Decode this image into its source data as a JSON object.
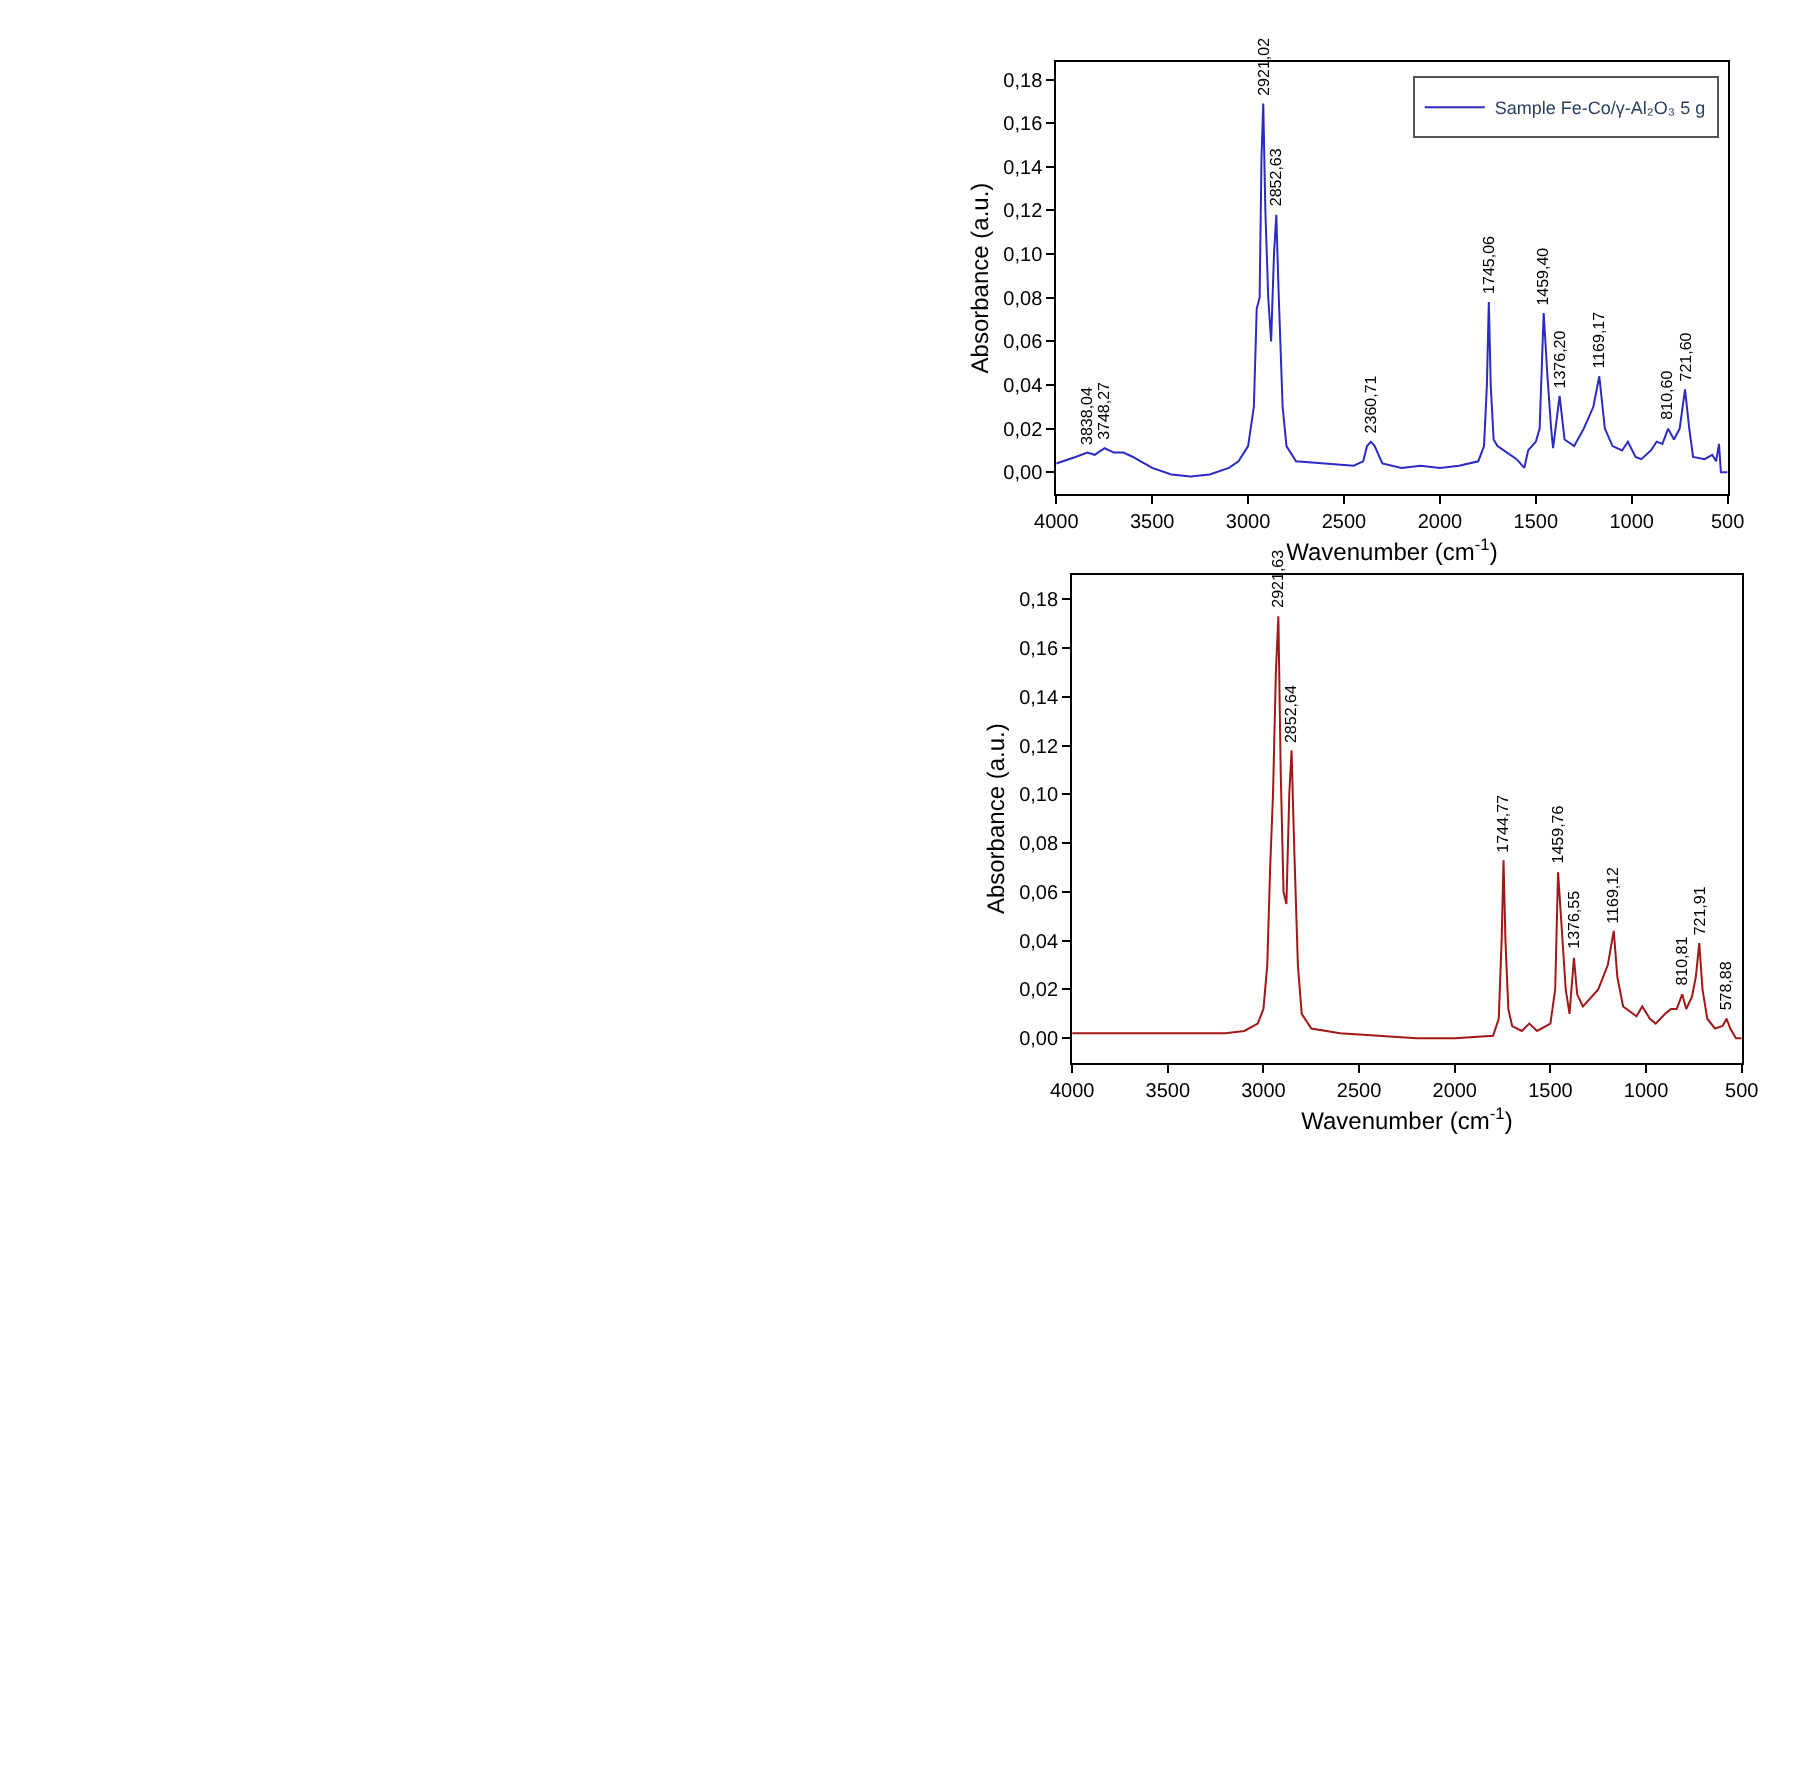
{
  "chart_data": [
    {
      "type": "line",
      "xlabel": "Wavenumber (cm$^{-1}$)",
      "ylabel": "Absorbance (a.u.)",
      "xlim": [
        4000,
        500
      ],
      "xticks": [
        4000,
        3500,
        3000,
        2500,
        2000,
        1500,
        1000,
        500
      ],
      "ylim": [
        -0.01,
        0.188
      ],
      "yticks": [
        {
          "value": 0,
          "label": "0,00"
        },
        {
          "value": 0.02,
          "label": "0,02"
        },
        {
          "value": 0.04,
          "label": "0,04"
        },
        {
          "value": 0.06,
          "label": "0,06"
        },
        {
          "value": 0.08,
          "label": "0,08"
        },
        {
          "value": 0.1,
          "label": "0,10"
        },
        {
          "value": 0.12,
          "label": "0,12"
        },
        {
          "value": 0.14,
          "label": "0,14"
        },
        {
          "value": 0.16,
          "label": "0,16"
        },
        {
          "value": 0.18,
          "label": "0,18"
        }
      ],
      "legend": "top right",
      "marker": "none",
      "line_style": "solid",
      "x": [
        4000,
        3900,
        3838,
        3800,
        3748,
        3700,
        3650,
        3600,
        3560,
        3500,
        3400,
        3300,
        3200,
        3100,
        3050,
        3000,
        2970,
        2955,
        2940,
        2930,
        2921,
        2910,
        2895,
        2880,
        2865,
        2853,
        2840,
        2820,
        2800,
        2750,
        2600,
        2450,
        2400,
        2380,
        2360,
        2340,
        2320,
        2300,
        2200,
        2100,
        2000,
        1900,
        1800,
        1770,
        1755,
        1745,
        1735,
        1720,
        1700,
        1650,
        1600,
        1560,
        1540,
        1500,
        1480,
        1459,
        1440,
        1420,
        1410,
        1376,
        1350,
        1300,
        1250,
        1200,
        1169,
        1140,
        1100,
        1050,
        1020,
        980,
        950,
        900,
        870,
        840,
        810,
        780,
        750,
        722,
        700,
        680,
        620,
        580,
        560,
        545,
        535,
        500
      ],
      "series": [
        {
          "name": "Sample Fe-Co/γ-Al₂O₃ 5 g",
          "color": "#2b2bc4",
          "values": [
            0.004,
            0.007,
            0.009,
            0.008,
            0.011,
            0.009,
            0.009,
            0.007,
            0.005,
            0.002,
            -0.001,
            -0.002,
            -0.001,
            0.002,
            0.005,
            0.012,
            0.03,
            0.075,
            0.08,
            0.145,
            0.169,
            0.12,
            0.08,
            0.06,
            0.1,
            0.118,
            0.08,
            0.03,
            0.012,
            0.005,
            0.004,
            0.003,
            0.005,
            0.012,
            0.014,
            0.012,
            0.008,
            0.004,
            0.002,
            0.003,
            0.002,
            0.003,
            0.005,
            0.012,
            0.04,
            0.078,
            0.04,
            0.015,
            0.012,
            0.009,
            0.006,
            0.002,
            0.01,
            0.014,
            0.02,
            0.073,
            0.045,
            0.02,
            0.011,
            0.035,
            0.015,
            0.012,
            0.02,
            0.03,
            0.044,
            0.02,
            0.012,
            0.01,
            0.014,
            0.007,
            0.006,
            0.01,
            0.014,
            0.013,
            0.02,
            0.015,
            0.02,
            0.038,
            0.02,
            0.007,
            0.006,
            0.008,
            0.005,
            0.013,
            0.0,
            0.0
          ]
        }
      ],
      "annotations": [
        {
          "text": "3838,04",
          "x": 3838.04,
          "y": 0.009
        },
        {
          "text": "3748,27",
          "x": 3748.27,
          "y": 0.011
        },
        {
          "text": "2921,02",
          "x": 2921.02,
          "y": 0.169
        },
        {
          "text": "2852,63",
          "x": 2852.63,
          "y": 0.118
        },
        {
          "text": "2360,71",
          "x": 2360.71,
          "y": 0.014
        },
        {
          "text": "1745,06",
          "x": 1745.06,
          "y": 0.078
        },
        {
          "text": "1459,40",
          "x": 1459.4,
          "y": 0.073
        },
        {
          "text": "1376,20",
          "x": 1376.2,
          "y": 0.035
        },
        {
          "text": "1169,17",
          "x": 1169.17,
          "y": 0.044
        },
        {
          "text": "810,60",
          "x": 810.6,
          "y": 0.02
        },
        {
          "text": "721,60",
          "x": 721.6,
          "y": 0.038
        }
      ]
    },
    {
      "type": "line",
      "xlabel": "Wavenumber (cm$^{-1}$)",
      "ylabel": "Absorbance (a.u.)",
      "xlim": [
        4000,
        500
      ],
      "xticks": [
        4000,
        3500,
        3000,
        2500,
        2000,
        1500,
        1000,
        500
      ],
      "ylim": [
        -0.01,
        0.19
      ],
      "yticks": [
        {
          "value": 0,
          "label": "0,00"
        },
        {
          "value": 0.02,
          "label": "0,02"
        },
        {
          "value": 0.04,
          "label": "0,04"
        },
        {
          "value": 0.06,
          "label": "0,06"
        },
        {
          "value": 0.08,
          "label": "0,08"
        },
        {
          "value": 0.1,
          "label": "0,10"
        },
        {
          "value": 0.12,
          "label": "0,12"
        },
        {
          "value": 0.14,
          "label": "0,14"
        },
        {
          "value": 0.16,
          "label": "0,16"
        },
        {
          "value": 0.18,
          "label": "0,18"
        }
      ],
      "marker": "none",
      "line_style": "solid",
      "x": [
        4000,
        3500,
        3200,
        3100,
        3030,
        3000,
        2980,
        2965,
        2950,
        2935,
        2922,
        2910,
        2895,
        2880,
        2865,
        2853,
        2840,
        2820,
        2800,
        2750,
        2600,
        2400,
        2200,
        2000,
        1800,
        1770,
        1755,
        1745,
        1735,
        1720,
        1700,
        1650,
        1610,
        1570,
        1500,
        1475,
        1460,
        1445,
        1420,
        1400,
        1377,
        1360,
        1330,
        1250,
        1200,
        1169,
        1150,
        1120,
        1050,
        1020,
        980,
        950,
        900,
        870,
        840,
        811,
        790,
        760,
        740,
        722,
        705,
        680,
        640,
        600,
        579,
        560,
        530,
        500
      ],
      "series": [
        {
          "color": "#a01818",
          "values": [
            0.002,
            0.002,
            0.002,
            0.003,
            0.006,
            0.012,
            0.03,
            0.07,
            0.1,
            0.15,
            0.173,
            0.11,
            0.06,
            0.055,
            0.1,
            0.118,
            0.08,
            0.03,
            0.01,
            0.004,
            0.002,
            0.001,
            0.0,
            0.0,
            0.001,
            0.008,
            0.04,
            0.073,
            0.04,
            0.012,
            0.005,
            0.003,
            0.006,
            0.003,
            0.006,
            0.02,
            0.068,
            0.05,
            0.02,
            0.01,
            0.033,
            0.018,
            0.013,
            0.02,
            0.03,
            0.044,
            0.025,
            0.013,
            0.009,
            0.013,
            0.008,
            0.006,
            0.01,
            0.012,
            0.012,
            0.018,
            0.012,
            0.017,
            0.025,
            0.039,
            0.02,
            0.008,
            0.004,
            0.005,
            0.008,
            0.004,
            0.0,
            0.0
          ]
        }
      ],
      "annotations": [
        {
          "text": "2921,63",
          "x": 2921.63,
          "y": 0.173
        },
        {
          "text": "2852,64",
          "x": 2852.64,
          "y": 0.118
        },
        {
          "text": "1744,77",
          "x": 1744.77,
          "y": 0.073
        },
        {
          "text": "1459,76",
          "x": 1459.76,
          "y": 0.068
        },
        {
          "text": "1376,55",
          "x": 1376.55,
          "y": 0.033
        },
        {
          "text": "1169,12",
          "x": 1169.12,
          "y": 0.044
        },
        {
          "text": "810,81",
          "x": 810.81,
          "y": 0.018
        },
        {
          "text": "721,91",
          "x": 721.91,
          "y": 0.039
        },
        {
          "text": "578,88",
          "x": 578.88,
          "y": 0.008
        }
      ]
    }
  ]
}
